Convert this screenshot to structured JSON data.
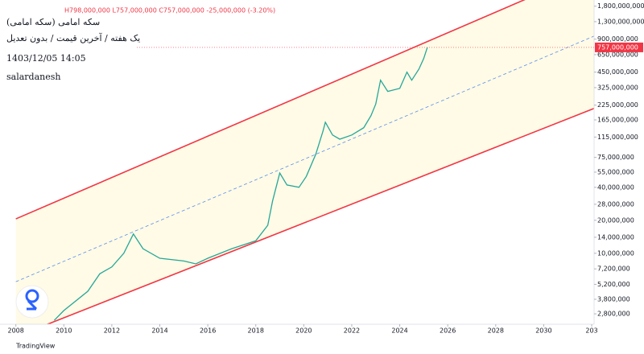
{
  "chart_data": {
    "type": "line",
    "log_scale": true,
    "ohlc": "H798,000,000 L757,000,000 C757,000,000 -25,000,000 (-3.20%)",
    "title": "سکه امامی (سکه امامی)",
    "subtitle": "یک هفته / آخرین قیمت / بدون تعدیل",
    "date": "1403/12/05 14:05",
    "author": "salardanesh",
    "footer": "TradingView",
    "color": "#26a69a",
    "x": [
      2009.6,
      2010,
      2011,
      2011.5,
      2012,
      2012.5,
      2012.9,
      2013.3,
      2014,
      2015,
      2015.5,
      2016,
      2017,
      2018,
      2018.5,
      2018.7,
      2019,
      2019.3,
      2019.8,
      2020.1,
      2020.5,
      2020.8,
      2020.9,
      2021.2,
      2021.5,
      2022,
      2022.5,
      2022.8,
      2023,
      2023.2,
      2023.5,
      2024,
      2024.3,
      2024.5,
      2024.8,
      2025,
      2025.15
    ],
    "values": [
      2440000,
      3000000,
      4500000,
      6500000,
      7500000,
      10000000,
      15000000,
      11000000,
      9000000,
      8500000,
      8000000,
      9000000,
      11000000,
      13000000,
      18000000,
      30000000,
      54000000,
      42000000,
      40000000,
      50000000,
      80000000,
      130000000,
      157000000,
      120000000,
      110000000,
      120000000,
      140000000,
      180000000,
      230000000,
      380000000,
      300000000,
      320000000,
      450000000,
      380000000,
      480000000,
      600000000,
      757000000
    ],
    "last_label": "757,000,000",
    "last_color": "#f23645",
    "channel_lines": [
      {
        "color": "#f23645",
        "x": [
          2008,
          2028.8
        ],
        "values": [
          20600000,
          1890000000
        ]
      },
      {
        "color": "#f23645",
        "x": [
          2009.3,
          2032.1
        ],
        "values": [
          2240000,
          210000000
        ]
      },
      {
        "color": "#5b8def",
        "dashed": true,
        "x": [
          2008,
          2032.1
        ],
        "values": [
          5500000,
          960000000
        ]
      }
    ],
    "channel_fill": "#fffbe6",
    "xlim": [
      2007.34,
      2032.1
    ],
    "xticks": [
      2008,
      2010,
      2012,
      2014,
      2016,
      2018,
      2020,
      2022,
      2024,
      2026,
      2028,
      2030,
      {
        "value": 2032,
        "label": "203"
      }
    ],
    "ylim": [
      2250000,
      2050000000
    ],
    "yticks": [
      {
        "value": 1800000000,
        "label": "1,800,000,000"
      },
      {
        "value": 1300000000,
        "label": "1,300,000,000"
      },
      {
        "value": 900000000,
        "label": "900,000,000"
      },
      {
        "value": 650000000,
        "label": "650,000,000"
      },
      {
        "value": 450000000,
        "label": "450,000,000"
      },
      {
        "value": 325000000,
        "label": "325,000,000"
      },
      {
        "value": 225000000,
        "label": "225,000,000"
      },
      {
        "value": 165000000,
        "label": "165,000,000"
      },
      {
        "value": 115000000,
        "label": "115,000,000"
      },
      {
        "value": 75000000,
        "label": "75,000,000"
      },
      {
        "value": 55000000,
        "label": "55,000,000"
      },
      {
        "value": 40000000,
        "label": "40,000,000"
      },
      {
        "value": 28000000,
        "label": "28,000,000"
      },
      {
        "value": 20000000,
        "label": "20,000,000"
      },
      {
        "value": 14000000,
        "label": "14,000,000"
      },
      {
        "value": 10000000,
        "label": "10,000,000"
      },
      {
        "value": 7200000,
        "label": "7,200,000"
      },
      {
        "value": 5200000,
        "label": "5,200,000"
      },
      {
        "value": 3800000,
        "label": "3,800,000"
      },
      {
        "value": 2800000,
        "label": "2,800,000"
      }
    ]
  }
}
